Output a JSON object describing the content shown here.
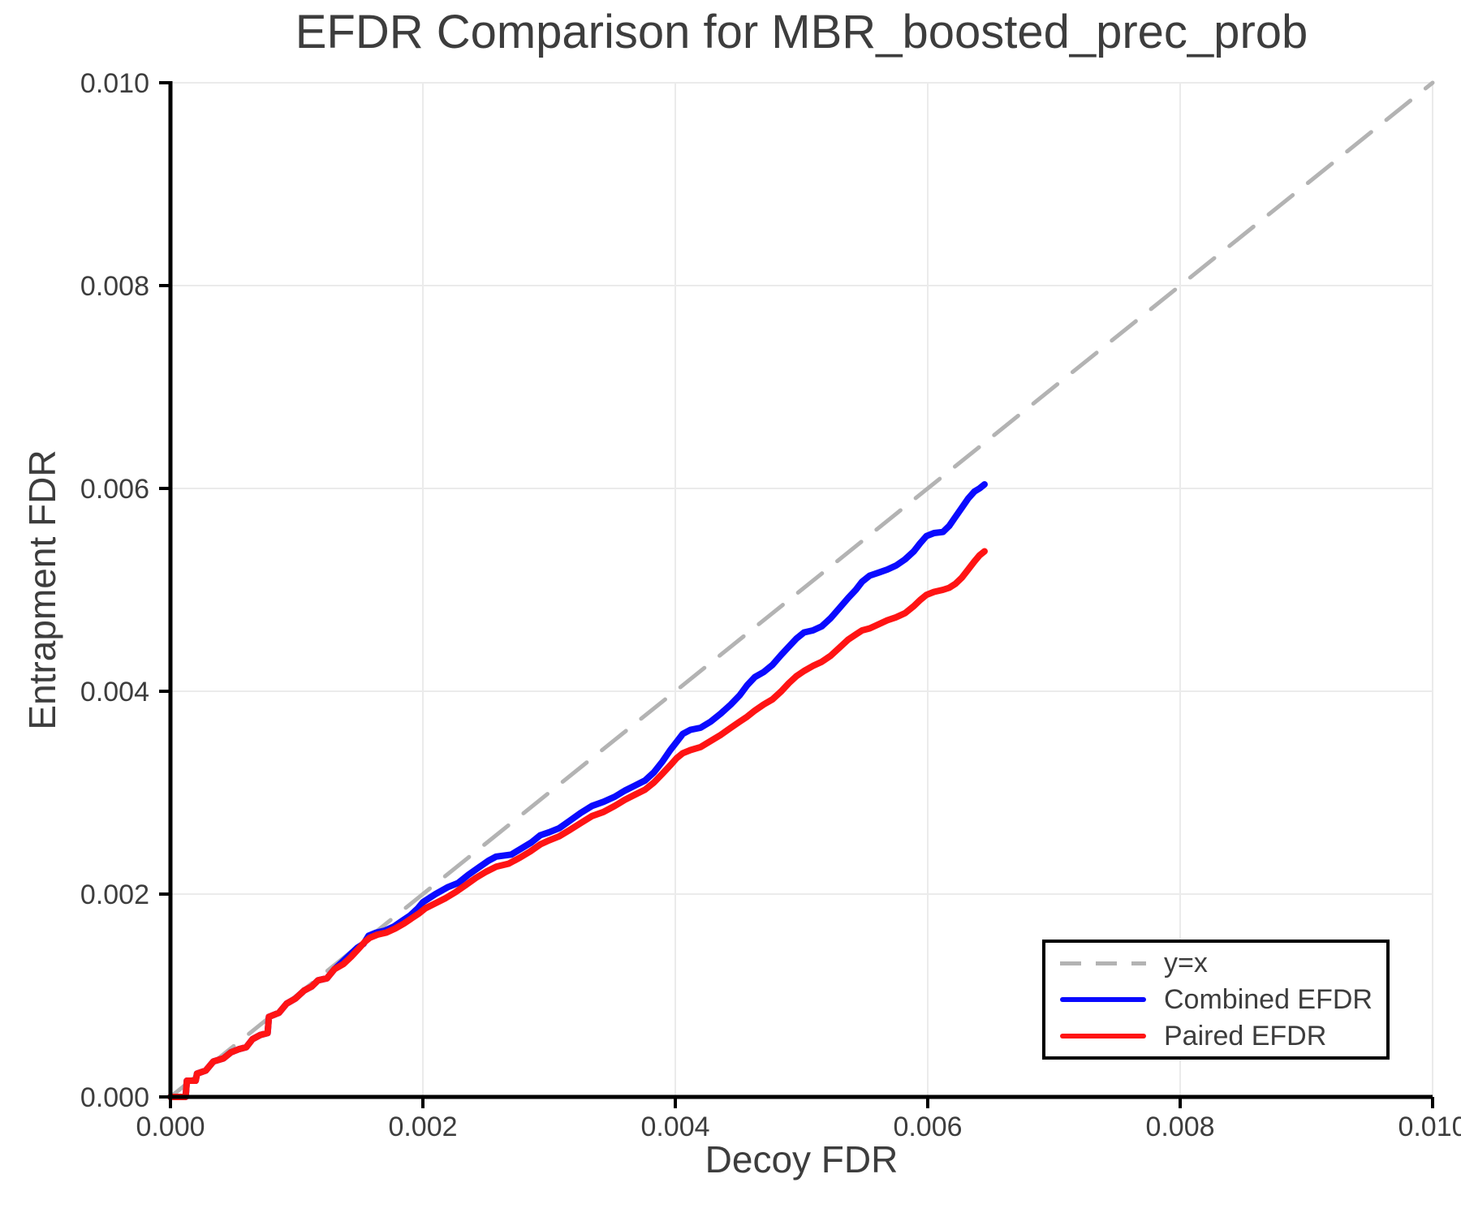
{
  "figure": {
    "title": "EFDR Comparison for MBR_boosted_prec_prob",
    "background": "#ffffff",
    "text_color": "#3d3d3d"
  },
  "chart_data": {
    "type": "line",
    "title": "EFDR Comparison for MBR_boosted_prec_prob",
    "xlabel": "Decoy FDR",
    "ylabel": "Entrapment FDR",
    "xlim": [
      0.0,
      0.01
    ],
    "ylim": [
      0.0,
      0.01
    ],
    "xticks": [
      "0.000",
      "0.002",
      "0.004",
      "0.006",
      "0.008",
      "0.010"
    ],
    "yticks": [
      "0.000",
      "0.002",
      "0.004",
      "0.006",
      "0.008",
      "0.010"
    ],
    "grid": true,
    "style": {
      "grid_color": "#ebebeb",
      "spine_color": "#000000",
      "tick_color": "#000000",
      "identity_color": "#b3b3b3",
      "combined_color": "#0a0aff",
      "paired_color": "#ff1414"
    },
    "legend": {
      "position": "lower right",
      "entries": [
        {
          "label": "y=x",
          "style": "dashed",
          "color": "#b3b3b3"
        },
        {
          "label": "Combined EFDR",
          "style": "solid",
          "color": "#0a0aff"
        },
        {
          "label": "Paired EFDR",
          "style": "solid",
          "color": "#ff1414"
        }
      ]
    },
    "series": [
      {
        "name": "y=x",
        "data_name": "identity-line",
        "color": "#b3b3b3",
        "dashed": true,
        "width": 5,
        "points": [
          [
            0.0,
            0.0
          ],
          [
            0.01,
            0.01
          ]
        ]
      },
      {
        "name": "Combined EFDR",
        "data_name": "combined-efdr-line",
        "color": "#0a0aff",
        "dashed": false,
        "width": 8,
        "points": [
          [
            0.0,
            0.0
          ],
          [
            0.00012,
            0.0
          ],
          [
            0.00013,
            0.00016
          ],
          [
            0.0002,
            0.00016
          ],
          [
            0.00021,
            0.00023
          ],
          [
            0.00028,
            0.00026
          ],
          [
            0.00034,
            0.00035
          ],
          [
            0.00042,
            0.00038
          ],
          [
            0.00048,
            0.00044
          ],
          [
            0.00054,
            0.00047
          ],
          [
            0.0006,
            0.00049
          ],
          [
            0.00065,
            0.00057
          ],
          [
            0.00071,
            0.00061
          ],
          [
            0.00077,
            0.00063
          ],
          [
            0.00078,
            0.00079
          ],
          [
            0.00086,
            0.00083
          ],
          [
            0.00092,
            0.00092
          ],
          [
            0.00099,
            0.00097
          ],
          [
            0.00106,
            0.00105
          ],
          [
            0.00112,
            0.00109
          ],
          [
            0.00117,
            0.00115
          ],
          [
            0.00124,
            0.00117
          ],
          [
            0.0013,
            0.00126
          ],
          [
            0.00136,
            0.00133
          ],
          [
            0.00142,
            0.0014
          ],
          [
            0.00148,
            0.00147
          ],
          [
            0.00153,
            0.00151
          ],
          [
            0.00157,
            0.00159
          ],
          [
            0.00163,
            0.00162
          ],
          [
            0.0017,
            0.00164
          ],
          [
            0.00177,
            0.00168
          ],
          [
            0.00184,
            0.00174
          ],
          [
            0.0019,
            0.00179
          ],
          [
            0.00196,
            0.00186
          ],
          [
            0.002,
            0.00192
          ],
          [
            0.0021,
            0.002
          ],
          [
            0.0022,
            0.00207
          ],
          [
            0.00228,
            0.00211
          ],
          [
            0.00236,
            0.00219
          ],
          [
            0.00244,
            0.00226
          ],
          [
            0.00252,
            0.00233
          ],
          [
            0.00258,
            0.00237
          ],
          [
            0.0027,
            0.00239
          ],
          [
            0.00278,
            0.00245
          ],
          [
            0.00286,
            0.00251
          ],
          [
            0.00293,
            0.00258
          ],
          [
            0.003,
            0.00261
          ],
          [
            0.00308,
            0.00265
          ],
          [
            0.00316,
            0.00272
          ],
          [
            0.00325,
            0.0028
          ],
          [
            0.00334,
            0.00287
          ],
          [
            0.00343,
            0.00291
          ],
          [
            0.00352,
            0.00296
          ],
          [
            0.0036,
            0.00302
          ],
          [
            0.00368,
            0.00307
          ],
          [
            0.00376,
            0.00312
          ],
          [
            0.00383,
            0.0032
          ],
          [
            0.0039,
            0.00331
          ],
          [
            0.00396,
            0.00342
          ],
          [
            0.00401,
            0.0035
          ],
          [
            0.00406,
            0.00358
          ],
          [
            0.00412,
            0.00362
          ],
          [
            0.0042,
            0.00364
          ],
          [
            0.00428,
            0.0037
          ],
          [
            0.00436,
            0.00378
          ],
          [
            0.00444,
            0.00387
          ],
          [
            0.00451,
            0.00396
          ],
          [
            0.00457,
            0.00406
          ],
          [
            0.00463,
            0.00414
          ],
          [
            0.0047,
            0.00419
          ],
          [
            0.00477,
            0.00426
          ],
          [
            0.00484,
            0.00436
          ],
          [
            0.0049,
            0.00444
          ],
          [
            0.00496,
            0.00452
          ],
          [
            0.00502,
            0.00458
          ],
          [
            0.00509,
            0.0046
          ],
          [
            0.00516,
            0.00464
          ],
          [
            0.00523,
            0.00472
          ],
          [
            0.0053,
            0.00482
          ],
          [
            0.00537,
            0.00492
          ],
          [
            0.00543,
            0.005
          ],
          [
            0.00548,
            0.00508
          ],
          [
            0.00554,
            0.00514
          ],
          [
            0.00561,
            0.00517
          ],
          [
            0.00568,
            0.0052
          ],
          [
            0.00575,
            0.00524
          ],
          [
            0.00582,
            0.0053
          ],
          [
            0.00589,
            0.00538
          ],
          [
            0.00594,
            0.00546
          ],
          [
            0.00599,
            0.00553
          ],
          [
            0.00605,
            0.00556
          ],
          [
            0.00612,
            0.00557
          ],
          [
            0.00617,
            0.00563
          ],
          [
            0.00622,
            0.00572
          ],
          [
            0.00627,
            0.00581
          ],
          [
            0.00632,
            0.0059
          ],
          [
            0.00637,
            0.00597
          ],
          [
            0.00641,
            0.006
          ],
          [
            0.00645,
            0.00604
          ]
        ]
      },
      {
        "name": "Paired EFDR",
        "data_name": "paired-efdr-line",
        "color": "#ff1414",
        "dashed": false,
        "width": 8,
        "points": [
          [
            0.0,
            0.0
          ],
          [
            0.00012,
            0.0
          ],
          [
            0.00013,
            0.00016
          ],
          [
            0.0002,
            0.00016
          ],
          [
            0.00021,
            0.00023
          ],
          [
            0.00028,
            0.00026
          ],
          [
            0.00034,
            0.00035
          ],
          [
            0.00042,
            0.00038
          ],
          [
            0.00048,
            0.00044
          ],
          [
            0.00054,
            0.00047
          ],
          [
            0.0006,
            0.00049
          ],
          [
            0.00065,
            0.00057
          ],
          [
            0.00071,
            0.00061
          ],
          [
            0.00077,
            0.00063
          ],
          [
            0.00078,
            0.00079
          ],
          [
            0.00086,
            0.00083
          ],
          [
            0.00092,
            0.00092
          ],
          [
            0.00099,
            0.00097
          ],
          [
            0.00106,
            0.00105
          ],
          [
            0.00112,
            0.00109
          ],
          [
            0.00117,
            0.00115
          ],
          [
            0.00124,
            0.00117
          ],
          [
            0.0013,
            0.00126
          ],
          [
            0.00137,
            0.00131
          ],
          [
            0.00143,
            0.00138
          ],
          [
            0.00149,
            0.00146
          ],
          [
            0.00154,
            0.00153
          ],
          [
            0.00158,
            0.00157
          ],
          [
            0.00164,
            0.0016
          ],
          [
            0.00171,
            0.00162
          ],
          [
            0.00178,
            0.00166
          ],
          [
            0.00185,
            0.00171
          ],
          [
            0.00191,
            0.00176
          ],
          [
            0.00197,
            0.00181
          ],
          [
            0.00202,
            0.00186
          ],
          [
            0.0021,
            0.00191
          ],
          [
            0.00218,
            0.00196
          ],
          [
            0.00226,
            0.00202
          ],
          [
            0.00234,
            0.00209
          ],
          [
            0.00242,
            0.00216
          ],
          [
            0.0025,
            0.00222
          ],
          [
            0.00258,
            0.00227
          ],
          [
            0.00268,
            0.0023
          ],
          [
            0.00277,
            0.00236
          ],
          [
            0.00285,
            0.00242
          ],
          [
            0.00293,
            0.00249
          ],
          [
            0.003,
            0.00253
          ],
          [
            0.00308,
            0.00257
          ],
          [
            0.00316,
            0.00263
          ],
          [
            0.00325,
            0.0027
          ],
          [
            0.00334,
            0.00277
          ],
          [
            0.00343,
            0.00281
          ],
          [
            0.00352,
            0.00287
          ],
          [
            0.0036,
            0.00293
          ],
          [
            0.00368,
            0.00298
          ],
          [
            0.00376,
            0.00303
          ],
          [
            0.00383,
            0.0031
          ],
          [
            0.0039,
            0.00319
          ],
          [
            0.00396,
            0.00327
          ],
          [
            0.00401,
            0.00334
          ],
          [
            0.00406,
            0.00339
          ],
          [
            0.00412,
            0.00342
          ],
          [
            0.0042,
            0.00345
          ],
          [
            0.00428,
            0.00351
          ],
          [
            0.00436,
            0.00357
          ],
          [
            0.00444,
            0.00364
          ],
          [
            0.00451,
            0.0037
          ],
          [
            0.00457,
            0.00375
          ],
          [
            0.00463,
            0.00381
          ],
          [
            0.0047,
            0.00387
          ],
          [
            0.00477,
            0.00392
          ],
          [
            0.00484,
            0.004
          ],
          [
            0.0049,
            0.00408
          ],
          [
            0.00496,
            0.00415
          ],
          [
            0.00502,
            0.0042
          ],
          [
            0.00509,
            0.00425
          ],
          [
            0.00516,
            0.00429
          ],
          [
            0.00523,
            0.00435
          ],
          [
            0.0053,
            0.00443
          ],
          [
            0.00537,
            0.00451
          ],
          [
            0.00543,
            0.00456
          ],
          [
            0.00548,
            0.0046
          ],
          [
            0.00554,
            0.00462
          ],
          [
            0.00561,
            0.00466
          ],
          [
            0.00568,
            0.0047
          ],
          [
            0.00575,
            0.00473
          ],
          [
            0.00582,
            0.00477
          ],
          [
            0.00589,
            0.00484
          ],
          [
            0.00594,
            0.0049
          ],
          [
            0.00599,
            0.00495
          ],
          [
            0.00605,
            0.00498
          ],
          [
            0.00612,
            0.005
          ],
          [
            0.00617,
            0.00502
          ],
          [
            0.00622,
            0.00506
          ],
          [
            0.00627,
            0.00512
          ],
          [
            0.00632,
            0.0052
          ],
          [
            0.00637,
            0.00528
          ],
          [
            0.00641,
            0.00534
          ],
          [
            0.00645,
            0.00538
          ]
        ]
      }
    ]
  }
}
